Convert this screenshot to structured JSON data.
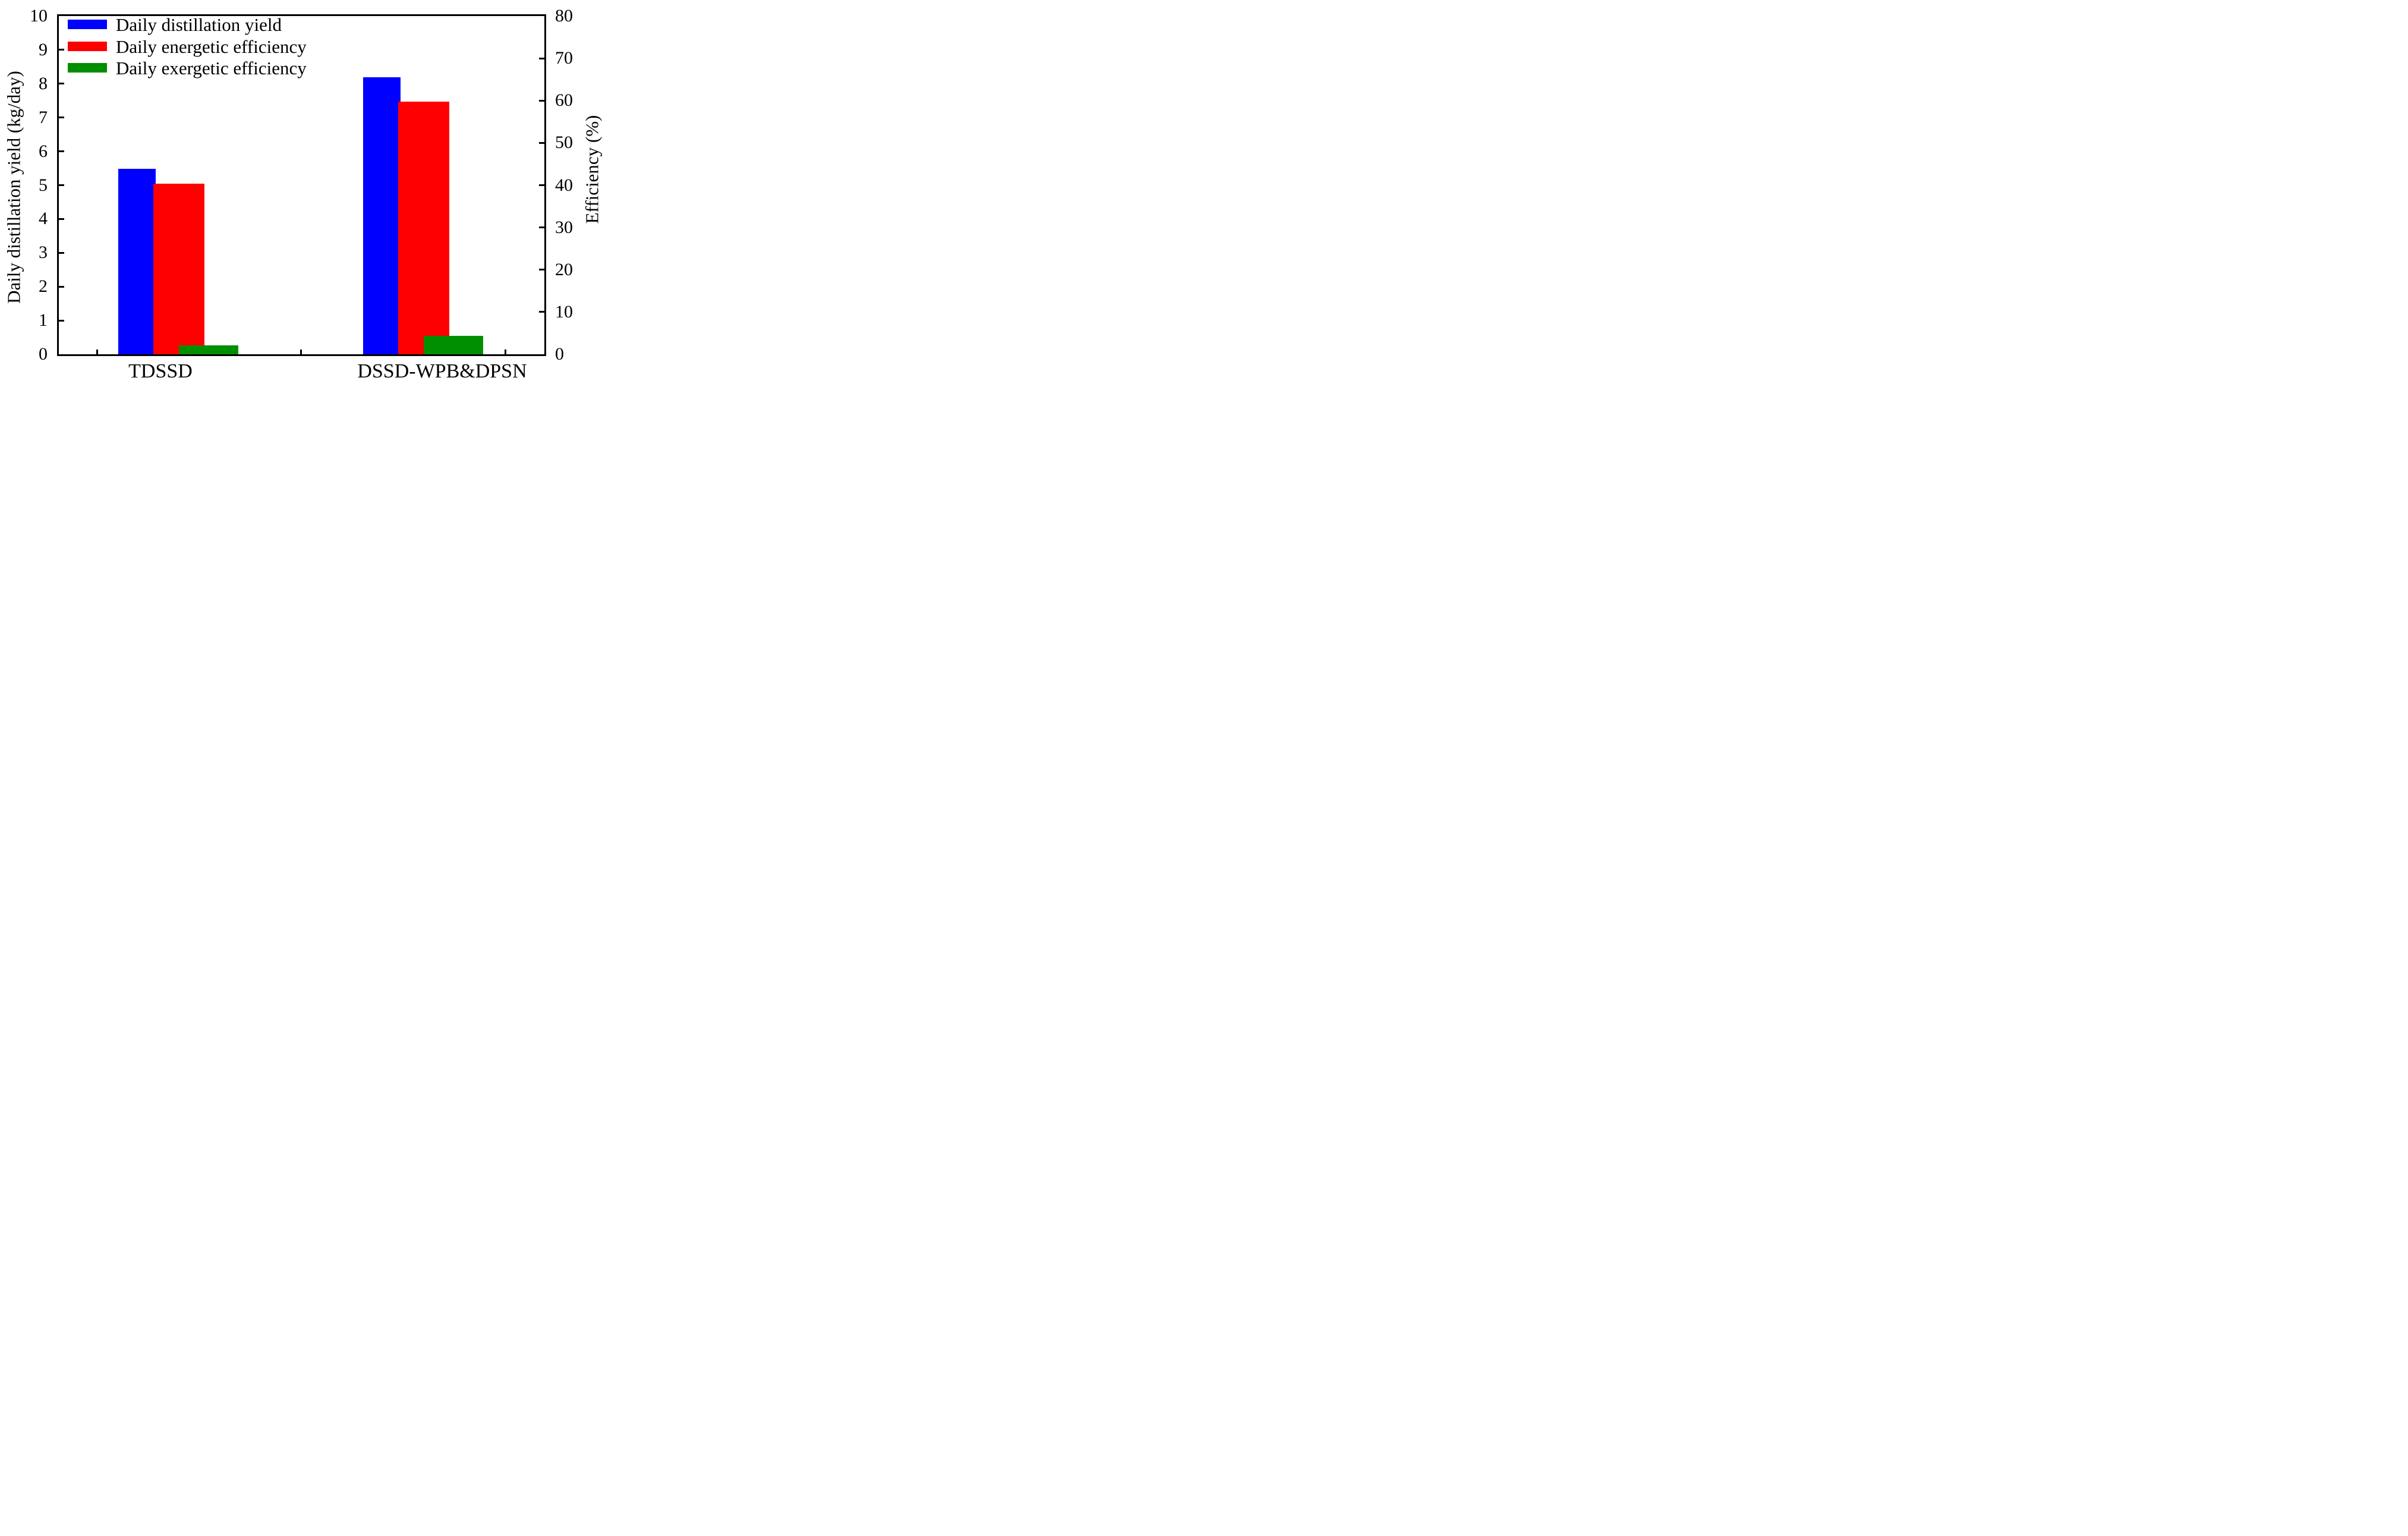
{
  "chart_data": {
    "type": "bar",
    "title": "",
    "categories": [
      "TDSSD",
      "DSSD-WPB&DPSN"
    ],
    "series": [
      {
        "name": "Daily distillation yield",
        "color": "#0000ff",
        "axis": "left",
        "unit": "kg/day",
        "values": [
          5.48,
          8.19
        ]
      },
      {
        "name": "Daily energetic efficiency",
        "color": "#ff0000",
        "axis": "right",
        "unit": "%",
        "values": [
          40.4,
          59.8
        ]
      },
      {
        "name": "Daily exergetic efficiency",
        "color": "#008f00",
        "axis": "right",
        "unit": "%",
        "values": [
          2.1,
          4.3
        ]
      }
    ],
    "left_axis": {
      "label": "Daily distillation yield (kg/day)",
      "min": 0,
      "max": 10,
      "tick_step": 1,
      "tick_labels": [
        "0",
        "1",
        "2",
        "3",
        "4",
        "5",
        "6",
        "7",
        "8",
        "9",
        "10"
      ]
    },
    "right_axis": {
      "label": "Efficiency (%)",
      "min": 0,
      "max": 80,
      "tick_step": 10,
      "tick_labels": [
        "0",
        "10",
        "20",
        "30",
        "40",
        "50",
        "60",
        "70",
        "80"
      ]
    },
    "legend_position": "top-left",
    "grid": false,
    "bar_style": "overlapped"
  }
}
